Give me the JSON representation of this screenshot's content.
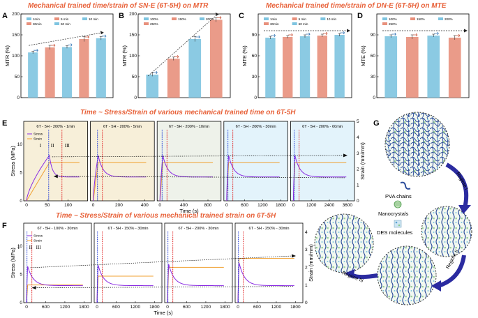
{
  "titles": {
    "mtr": "Mechanical trained time/strain of SN-E (6T-5H) on MTR",
    "mte": "Mechanical trained time/strain of DN-E (6T-5H) on MTE",
    "time": "Time ~ Stress/Strain of various mechanical trained time on 6T-5H",
    "strain": "Time ~ Stress/Strain of various mechanical trained strain on 6T-5H"
  },
  "labels": {
    "A": "A",
    "B": "B",
    "C": "C",
    "D": "D",
    "E": "E",
    "F": "F",
    "G": "G"
  },
  "colors": {
    "blue": "#7ec4e0",
    "red": "#e8907c",
    "title": "#e8623a",
    "stress": "#8a2be2",
    "strain": "#f0a030",
    "e_bg_left": "#f7efd9",
    "e_bg_right": "#e3f3fb"
  },
  "chart_data": [
    {
      "id": "A",
      "type": "bar",
      "ylabel": "MTR (%)",
      "ylim": [
        0,
        200
      ],
      "yticks": [
        "0",
        "50",
        "100",
        "150",
        "200"
      ],
      "legend": [
        "1min",
        "5 min",
        "10 min",
        "30min",
        "60 min"
      ],
      "values": [
        108,
        120,
        121,
        140,
        142
      ],
      "errors": [
        3,
        5,
        3,
        6,
        4
      ]
    },
    {
      "id": "B",
      "type": "bar",
      "ylabel": "MTR (%)",
      "ylim": [
        0,
        200
      ],
      "yticks": [
        "0",
        "50",
        "100",
        "150",
        "200"
      ],
      "legend": [
        "100%",
        "150%",
        "200%",
        "250%"
      ],
      "values": [
        55,
        93,
        140,
        186
      ],
      "errors": [
        4,
        4,
        6,
        5
      ]
    },
    {
      "id": "C",
      "type": "bar",
      "ylabel": "MTE (%)",
      "ylim": [
        0,
        120
      ],
      "yticks": [
        "0",
        "30",
        "60",
        "90"
      ],
      "legend": [
        "1min",
        "5 min",
        "10 min",
        "30min",
        "60 min"
      ],
      "values": [
        86,
        87,
        88,
        89,
        90
      ],
      "errors": [
        2,
        2,
        2,
        2,
        2
      ]
    },
    {
      "id": "D",
      "type": "bar",
      "ylabel": "MTE (%)",
      "ylim": [
        0,
        120
      ],
      "yticks": [
        "0",
        "30",
        "60",
        "90"
      ],
      "legend": [
        "100%",
        "150%",
        "200%",
        "250%"
      ],
      "values": [
        88,
        87,
        89,
        86
      ],
      "errors": [
        2,
        3,
        2,
        3
      ]
    },
    {
      "id": "E",
      "type": "line",
      "xlabel": "Time (s)",
      "ylabel_left": "Stress (MPa)",
      "ylabel_right": "Strain (mm/mm)",
      "yticks_left": [
        "0",
        "5",
        "10"
      ],
      "yticks_right": [
        "0",
        "1",
        "2",
        "3",
        "4",
        "5"
      ],
      "legend": [
        "Stress",
        "Strain"
      ],
      "regimes": [
        "I",
        "II",
        "III"
      ],
      "subplots": [
        {
          "label": "6T - 5H - 200% - 1min",
          "xticks": [
            "0",
            "50",
            "100"
          ],
          "xmax": 130,
          "peak_t": 60,
          "dwell": 60,
          "bg": "left"
        },
        {
          "label": "6T - 5H - 200% - 5min",
          "xticks": [
            "0",
            "200",
            "400"
          ],
          "xmax": 420,
          "peak_t": 60,
          "dwell": 300,
          "bg": "left"
        },
        {
          "label": "6T - 5H - 200% - 10min",
          "xticks": [
            "0",
            "400",
            "800"
          ],
          "xmax": 900,
          "peak_t": 60,
          "dwell": 600,
          "bg": "mid"
        },
        {
          "label": "6T - 5H - 200% - 30min",
          "xticks": [
            "0",
            "600",
            "1200",
            "1800"
          ],
          "xmax": 1800,
          "peak_t": 60,
          "dwell": 1800,
          "bg": "right"
        },
        {
          "label": "6T - 5H - 200% - 60min",
          "xticks": [
            "0",
            "1200",
            "2400",
            "3600"
          ],
          "xmax": 3600,
          "peak_t": 60,
          "dwell": 3600,
          "bg": "right"
        }
      ]
    },
    {
      "id": "F",
      "type": "line",
      "xlabel": "Time (s)",
      "ylabel_left": "Stress (MPa)",
      "ylabel_right": "Strain (mm/mm)",
      "yticks_left": [
        "0",
        "5",
        "10"
      ],
      "yticks_right": [
        "0",
        "1",
        "2",
        "3",
        "4"
      ],
      "legend": [
        "Stress",
        "Strain"
      ],
      "regimes": [
        "I",
        "II",
        "III"
      ],
      "subplots": [
        {
          "label": "6T - 5H - 100% - 30min",
          "xticks": [
            "0",
            "600",
            "1200",
            "1800"
          ],
          "xmax": 1800,
          "strain_level": 1.0
        },
        {
          "label": "6T - 5H - 150% - 30min",
          "xticks": [
            "0",
            "600",
            "1200",
            "1800"
          ],
          "xmax": 1800,
          "strain_level": 1.5
        },
        {
          "label": "6T - 5H - 200% - 30min",
          "xticks": [
            "0",
            "600",
            "1200",
            "1800"
          ],
          "xmax": 1800,
          "strain_level": 2.0
        },
        {
          "label": "6T - 5H - 250% - 30min",
          "xticks": [
            "0",
            "600",
            "1200",
            "1800"
          ],
          "xmax": 1800,
          "strain_level": 2.5
        }
      ]
    }
  ],
  "schematic": {
    "legend": [
      "PVA chains",
      "Nanocrystals",
      "DES molecules"
    ],
    "regimes": [
      "Regime I",
      "Regime II",
      "Regime III"
    ]
  }
}
